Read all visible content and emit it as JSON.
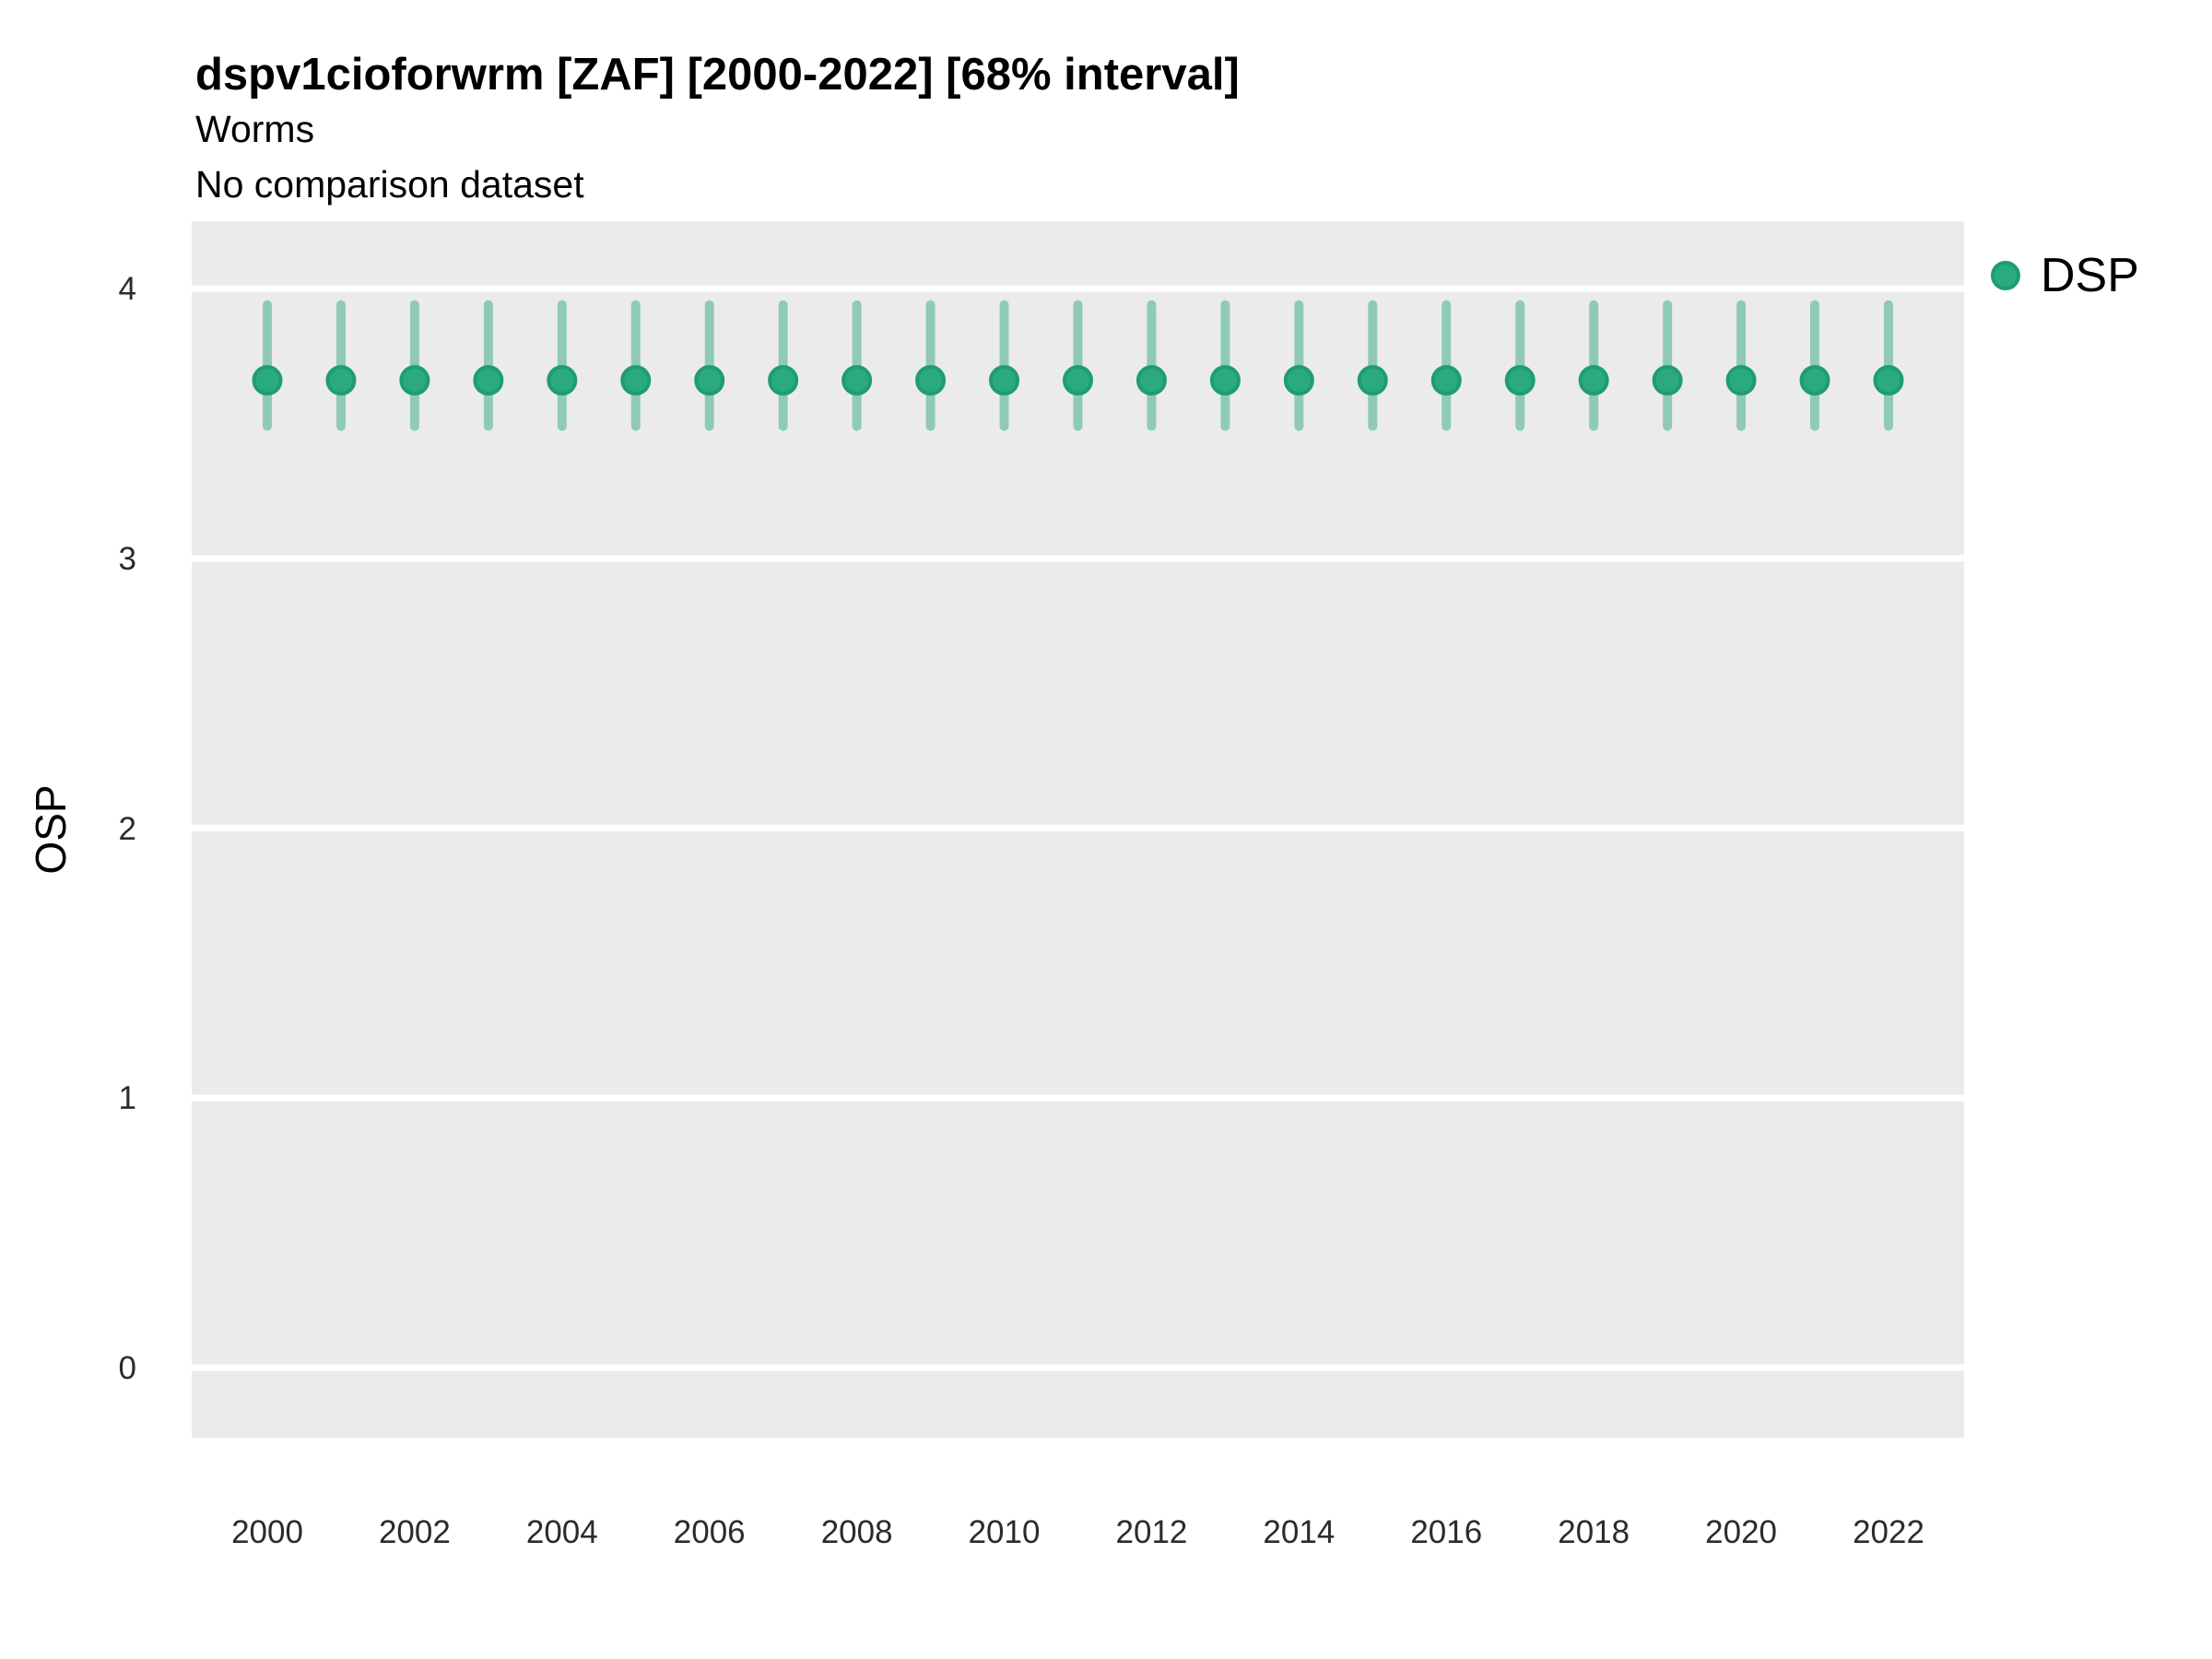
{
  "header": {
    "title": "dspv1cioforwrm [ZAF] [2000-2022] [68% interval]",
    "subtitle": "Worms",
    "caption": "No comparison dataset"
  },
  "colors": {
    "panel_bg": "#EBEBEB",
    "gridline": "#FFFFFF",
    "point_fill": "#2BAA7E",
    "point_ring": "#1F9D72",
    "range_bar": "#8FCBB4",
    "tick_text": "#2b2b2b"
  },
  "legend": {
    "position": "right",
    "items": [
      {
        "label": "DSP",
        "fill": "#2BAA7E",
        "ring": "#1F9D72"
      }
    ]
  },
  "chart_data": {
    "type": "pointrange",
    "title": "dspv1cioforwrm [ZAF] [2000-2022] [68% interval]",
    "subtitle": "Worms",
    "caption": "No comparison dataset",
    "xlabel": "",
    "ylabel": "OSP",
    "grid": "major-horizontal-only",
    "legend_position": "right",
    "x": [
      2000,
      2001,
      2002,
      2003,
      2004,
      2005,
      2006,
      2007,
      2008,
      2009,
      2010,
      2011,
      2012,
      2013,
      2014,
      2015,
      2016,
      2017,
      2018,
      2019,
      2020,
      2021,
      2022
    ],
    "series": [
      {
        "name": "DSP",
        "values": [
          3.66,
          3.66,
          3.66,
          3.66,
          3.66,
          3.66,
          3.66,
          3.66,
          3.66,
          3.66,
          3.66,
          3.66,
          3.66,
          3.66,
          3.66,
          3.66,
          3.66,
          3.66,
          3.66,
          3.66,
          3.66,
          3.66,
          3.66
        ],
        "lower": [
          3.49,
          3.49,
          3.49,
          3.49,
          3.49,
          3.49,
          3.49,
          3.49,
          3.49,
          3.49,
          3.49,
          3.49,
          3.49,
          3.49,
          3.49,
          3.49,
          3.49,
          3.49,
          3.49,
          3.49,
          3.49,
          3.49,
          3.49
        ],
        "upper": [
          3.94,
          3.94,
          3.94,
          3.94,
          3.94,
          3.94,
          3.94,
          3.94,
          3.94,
          3.94,
          3.94,
          3.94,
          3.94,
          3.94,
          3.94,
          3.94,
          3.94,
          3.94,
          3.94,
          3.94,
          3.94,
          3.94,
          3.94
        ]
      }
    ],
    "interval": "68%",
    "xtick_labels": [
      "2000",
      "2002",
      "2004",
      "2006",
      "2008",
      "2010",
      "2012",
      "2014",
      "2016",
      "2018",
      "2020",
      "2022"
    ],
    "yticks": [
      0,
      1,
      2,
      3,
      4
    ],
    "ylim": [
      -0.26,
      4.25
    ]
  }
}
